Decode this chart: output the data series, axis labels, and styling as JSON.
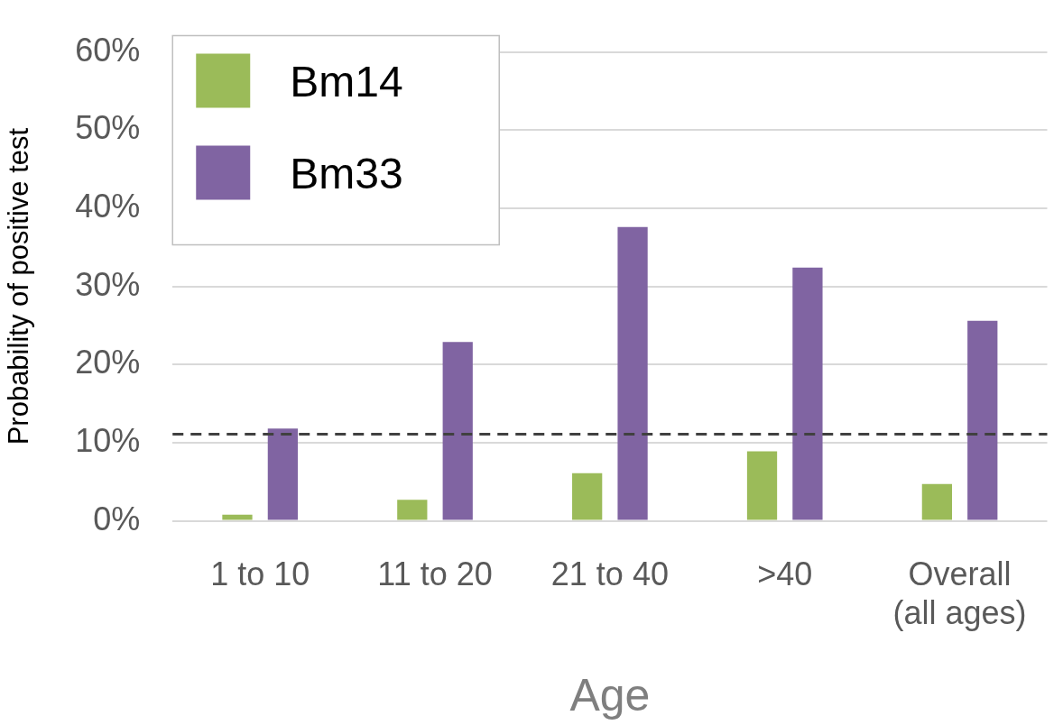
{
  "chart_data": {
    "type": "bar",
    "xlabel": "Age",
    "ylabel": "Probability of positive test",
    "categories": [
      "1 to 10",
      "11 to 20",
      "21 to 40",
      ">40",
      "Overall (all ages)"
    ],
    "series": [
      {
        "name": "Bm14",
        "color": "#9bbb59",
        "values": [
          0.8,
          2.7,
          6.1,
          8.9,
          4.7
        ]
      },
      {
        "name": "Bm33",
        "color": "#8064a2",
        "values": [
          11.8,
          22.9,
          37.6,
          32.4,
          25.6
        ]
      }
    ],
    "ylim": [
      0,
      60
    ],
    "yticks": [
      {
        "value": 0,
        "label": "0%"
      },
      {
        "value": 10,
        "label": "10%"
      },
      {
        "value": 20,
        "label": "20%"
      },
      {
        "value": 30,
        "label": "30%"
      },
      {
        "value": 40,
        "label": "40%"
      },
      {
        "value": 50,
        "label": "50%"
      },
      {
        "value": 60,
        "label": "60%"
      }
    ],
    "ref_lines": [
      {
        "axis": "y",
        "value": 11.1,
        "color": "#404040",
        "line_style": "dashed"
      }
    ],
    "grid": "y",
    "legend": "top left"
  }
}
